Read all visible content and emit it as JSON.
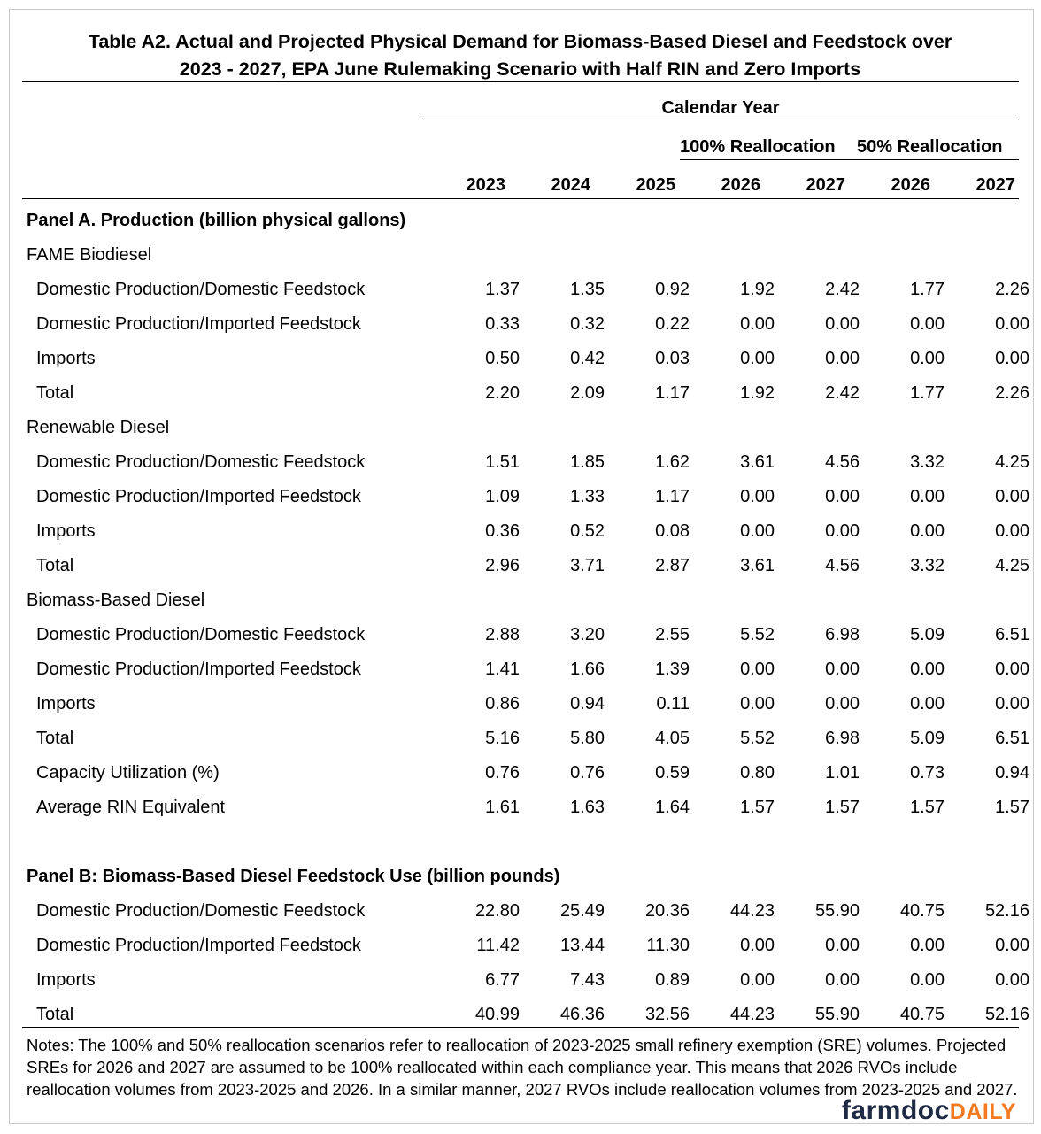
{
  "title_line1": "Table A2. Actual and Projected Physical Demand for Biomass-Based Diesel and Feedstock over",
  "title_line2": "2023 - 2027, EPA June Rulemaking Scenario with Half RIN and Zero Imports",
  "calendar_year": "Calendar Year",
  "group_100": "100% Reallocation",
  "group_50": "50% Reallocation",
  "years": [
    "2023",
    "2024",
    "2025",
    "2026",
    "2027",
    "2026",
    "2027"
  ],
  "rows": [
    {
      "type": "panel",
      "label": "Panel A. Production (billion physical gallons)"
    },
    {
      "type": "section",
      "label": "FAME Biodiesel"
    },
    {
      "type": "data",
      "label": "Domestic Production/Domestic Feedstock",
      "values": [
        "1.37",
        "1.35",
        "0.92",
        "1.92",
        "2.42",
        "1.77",
        "2.26"
      ]
    },
    {
      "type": "data",
      "label": "Domestic Production/Imported Feedstock",
      "values": [
        "0.33",
        "0.32",
        "0.22",
        "0.00",
        "0.00",
        "0.00",
        "0.00"
      ]
    },
    {
      "type": "data",
      "label": "Imports",
      "values": [
        "0.50",
        "0.42",
        "0.03",
        "0.00",
        "0.00",
        "0.00",
        "0.00"
      ]
    },
    {
      "type": "data",
      "label": "Total",
      "values": [
        "2.20",
        "2.09",
        "1.17",
        "1.92",
        "2.42",
        "1.77",
        "2.26"
      ]
    },
    {
      "type": "section",
      "label": "Renewable Diesel"
    },
    {
      "type": "data",
      "label": "Domestic Production/Domestic Feedstock",
      "values": [
        "1.51",
        "1.85",
        "1.62",
        "3.61",
        "4.56",
        "3.32",
        "4.25"
      ]
    },
    {
      "type": "data",
      "label": "Domestic Production/Imported Feedstock",
      "values": [
        "1.09",
        "1.33",
        "1.17",
        "0.00",
        "0.00",
        "0.00",
        "0.00"
      ]
    },
    {
      "type": "data",
      "label": "Imports",
      "values": [
        "0.36",
        "0.52",
        "0.08",
        "0.00",
        "0.00",
        "0.00",
        "0.00"
      ]
    },
    {
      "type": "data",
      "label": "Total",
      "values": [
        "2.96",
        "3.71",
        "2.87",
        "3.61",
        "4.56",
        "3.32",
        "4.25"
      ]
    },
    {
      "type": "section",
      "label": "Biomass-Based Diesel"
    },
    {
      "type": "data",
      "label": "Domestic Production/Domestic Feedstock",
      "values": [
        "2.88",
        "3.20",
        "2.55",
        "5.52",
        "6.98",
        "5.09",
        "6.51"
      ]
    },
    {
      "type": "data",
      "label": "Domestic Production/Imported Feedstock",
      "values": [
        "1.41",
        "1.66",
        "1.39",
        "0.00",
        "0.00",
        "0.00",
        "0.00"
      ]
    },
    {
      "type": "data",
      "label": "Imports",
      "values": [
        "0.86",
        "0.94",
        "0.11",
        "0.00",
        "0.00",
        "0.00",
        "0.00"
      ]
    },
    {
      "type": "data",
      "label": "Total",
      "values": [
        "5.16",
        "5.80",
        "4.05",
        "5.52",
        "6.98",
        "5.09",
        "6.51"
      ]
    },
    {
      "type": "data",
      "label": "Capacity Utilization (%)",
      "values": [
        "0.76",
        "0.76",
        "0.59",
        "0.80",
        "1.01",
        "0.73",
        "0.94"
      ]
    },
    {
      "type": "data",
      "label": "Average RIN Equivalent",
      "values": [
        "1.61",
        "1.63",
        "1.64",
        "1.57",
        "1.57",
        "1.57",
        "1.57"
      ]
    },
    {
      "type": "blank"
    },
    {
      "type": "panel",
      "label": "Panel B: Biomass-Based Diesel Feedstock Use (billion pounds)"
    },
    {
      "type": "data",
      "label": "Domestic Production/Domestic Feedstock",
      "values": [
        "22.80",
        "25.49",
        "20.36",
        "44.23",
        "55.90",
        "40.75",
        "52.16"
      ]
    },
    {
      "type": "data",
      "label": "Domestic Production/Imported Feedstock",
      "values": [
        "11.42",
        "13.44",
        "11.30",
        "0.00",
        "0.00",
        "0.00",
        "0.00"
      ]
    },
    {
      "type": "data",
      "label": "Imports",
      "values": [
        "6.77",
        "7.43",
        "0.89",
        "0.00",
        "0.00",
        "0.00",
        "0.00"
      ]
    },
    {
      "type": "data",
      "label": "Total",
      "values": [
        "40.99",
        "46.36",
        "32.56",
        "44.23",
        "55.90",
        "40.75",
        "52.16"
      ]
    }
  ],
  "notes": "Notes: The 100% and 50% reallocation scenarios refer to reallocation of 2023-2025 small refinery exemption (SRE) volumes. Projected SREs for 2026 and 2027 are assumed to be 100% reallocated within each compliance year.  This means that 2026 RVOs include reallocation volumes from 2023-2025 and 2026.  In a similar manner, 2027 RVOs include reallocation volumes from 2023-2025 and 2027.",
  "logo": {
    "part1": "farmdoc",
    "part2": "DAILY",
    "colors": {
      "part1": "#1f2a44",
      "part2": "#f47a20"
    }
  }
}
